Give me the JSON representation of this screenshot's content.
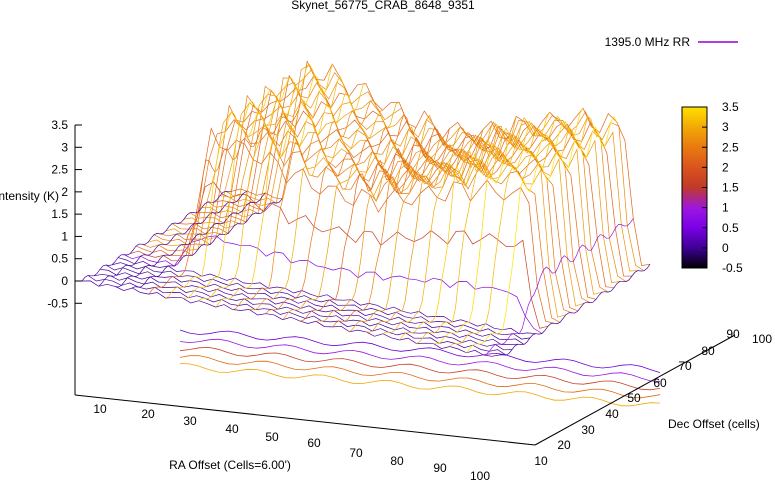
{
  "chart_data": {
    "type": "surface3d",
    "title": "Skynet_56775_CRAB_8648_9351",
    "legend_label": "1395.0 MHz RR",
    "legend_color": "#9400d3",
    "zlabel": "Intensity (K)",
    "xlabel": "RA Offset (Cells=6.00')",
    "ylabel": "Dec Offset (cells)",
    "z_ticks": [
      "3.5",
      "3",
      "2.5",
      "2",
      "1.5",
      "1",
      "0.5",
      "0",
      "-0.5"
    ],
    "x_ticks": [
      "10",
      "20",
      "30",
      "40",
      "50",
      "60",
      "70",
      "80",
      "90",
      "100"
    ],
    "y_ticks": [
      "10",
      "20",
      "30",
      "40",
      "50",
      "60",
      "70",
      "80",
      "90",
      "100"
    ],
    "colorbar_ticks": [
      "3.5",
      "3",
      "2.5",
      "2",
      "1.5",
      "1",
      "0.5",
      "0",
      "-0.5"
    ],
    "colorbar_range": [
      -0.5,
      3.5
    ],
    "colormap": [
      "#000000",
      "#3b0091",
      "#7a00e6",
      "#9c17e0",
      "#c0392b",
      "#d9531e",
      "#e87a10",
      "#f2a705",
      "#ffd200",
      "#ffff00"
    ],
    "zlim": [
      -0.5,
      3.5
    ],
    "xlim": [
      1,
      100
    ],
    "ylim": [
      1,
      100
    ],
    "grid": false,
    "legend_position": "top-right",
    "contours": true
  }
}
